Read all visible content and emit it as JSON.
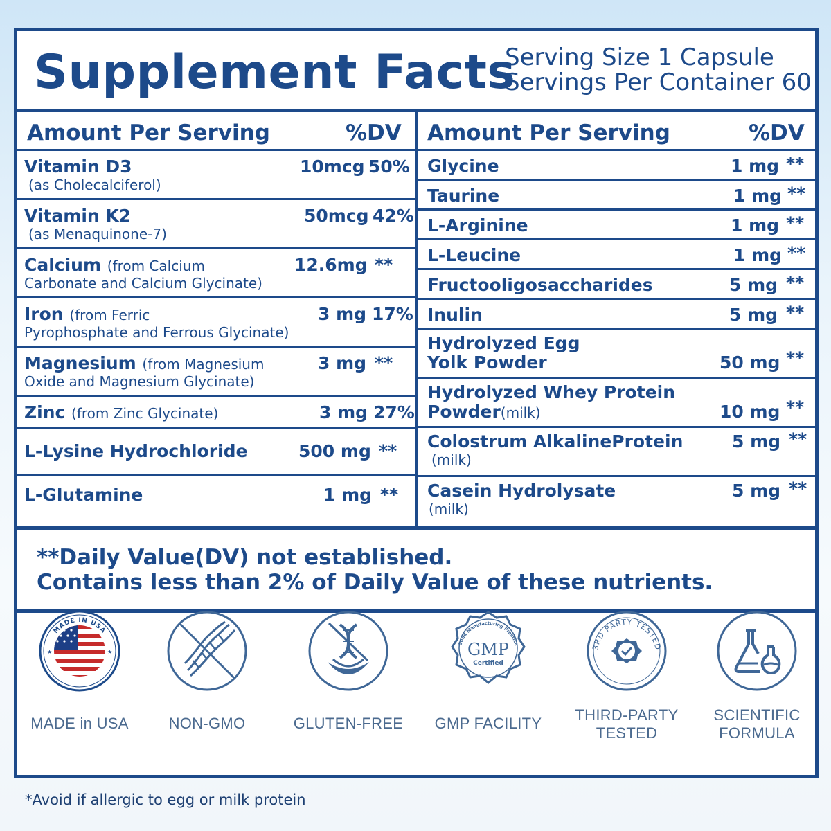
{
  "header": {
    "title": "Supplement Facts",
    "serving_size": "Serving Size 1 Capsule",
    "servings_per_container": "Servings Per Container 60"
  },
  "table": {
    "col_header_amount": "Amount Per Serving",
    "col_header_dv": "%DV",
    "left": [
      {
        "name": "Vitamin D3",
        "sub": "(as Cholecalciferol)",
        "amount": "10mcg",
        "dv": "50%"
      },
      {
        "name": "Vitamin K2",
        "sub": "(as Menaquinone-7)",
        "amount": "50mcg",
        "dv": "42%"
      },
      {
        "name": "Calcium",
        "source": "(from Calcium",
        "sub": "Carbonate and Calcium Glycinate)",
        "amount": "12.6mg",
        "dv": "**"
      },
      {
        "name": "Iron",
        "source": "(from Ferric",
        "sub": "Pyrophosphate and Ferrous Glycinate)",
        "amount": "3 mg",
        "dv": "17%"
      },
      {
        "name": "Magnesium",
        "source": "(from Magnesium",
        "sub": "Oxide and Magnesium Glycinate)",
        "amount": "3 mg",
        "dv": "**"
      },
      {
        "name": "Zinc",
        "source": "(from Zinc Glycinate)",
        "amount": "3 mg",
        "dv": "27%"
      },
      {
        "name": "L-Lysine Hydrochloride",
        "amount": "500 mg",
        "dv": "**"
      },
      {
        "name": "L-Glutamine",
        "amount": "1 mg",
        "dv": "**"
      }
    ],
    "right": [
      {
        "name": "Glycine",
        "amount": "1 mg",
        "dv": "**"
      },
      {
        "name": "Taurine",
        "amount": "1 mg",
        "dv": "**"
      },
      {
        "name": "L-Arginine",
        "amount": "1 mg",
        "dv": "**"
      },
      {
        "name": "L-Leucine",
        "amount": "1 mg",
        "dv": "**"
      },
      {
        "name": "Fructooligosaccharides",
        "amount": "5 mg",
        "dv": "**"
      },
      {
        "name": "Inulin",
        "amount": "5 mg",
        "dv": "**"
      },
      {
        "name": "Hydrolyzed Egg",
        "name2": "Yolk Powder",
        "amount": "50 mg",
        "dv": "**"
      },
      {
        "name": "Hydrolyzed Whey Protein",
        "name2": "Powder",
        "source": "(milk)",
        "amount": "10 mg",
        "dv": "**"
      },
      {
        "name": "Colostrum AlkalineProtein",
        "sub": "(milk)",
        "amount": "5 mg",
        "dv": "**"
      },
      {
        "name": "Casein Hydrolysate",
        "sub": "(milk)",
        "amount": "5 mg",
        "dv": "**"
      }
    ]
  },
  "footnotes": {
    "line1": "**Daily Value(DV) not established.",
    "line2": "Contains less than 2% of Daily Value of these nutrients."
  },
  "badges": [
    {
      "icon": "usa-flag-seal-icon",
      "seal_text": "MADE IN USA",
      "line1": "MADE in USA",
      "line2": ""
    },
    {
      "icon": "crossed-dna-icon",
      "line1": "NON-GMO",
      "line2": ""
    },
    {
      "icon": "dna-wheat-icon",
      "line1": "GLUTEN-FREE",
      "line2": ""
    },
    {
      "icon": "gmp-seal-icon",
      "seal_text": "GMP",
      "seal_sub": "Certified",
      "seal_ring": "Good Manufacturing Practice",
      "line1": "GMP FACILITY",
      "line2": ""
    },
    {
      "icon": "third-party-tested-icon",
      "seal_ring": "3RD PARTY TESTED",
      "line1": "THIRD-PARTY",
      "line2": "TESTED"
    },
    {
      "icon": "lab-flask-icon",
      "line1": "SCIENTIFIC",
      "line2": "FORMULA"
    }
  ],
  "bottom_note": "*Avoid if allergic to egg or milk protein",
  "colors": {
    "primary": "#1d4a8a",
    "label_gray": "#4b6a8f"
  }
}
